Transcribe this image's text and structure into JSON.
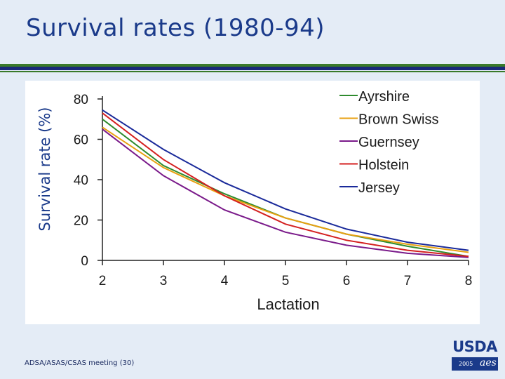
{
  "slide": {
    "title": "Survival rates (1980-94)",
    "footer": "ADSA/ASAS/CSAS meeting (30)",
    "logo_text": "USDA",
    "logo_year": "2005",
    "logo_mark": "aes"
  },
  "colors": {
    "Ayrshire": "#2e8b2e",
    "Brown Swiss": "#e8a010",
    "Guernsey": "#7a1a8a",
    "Holstein": "#d42020",
    "Jersey": "#1a2a9a"
  },
  "chart_data": {
    "type": "line",
    "title": "",
    "xlabel": "Lactation",
    "ylabel": "Survival rate (%)",
    "x": [
      2,
      3,
      4,
      5,
      6,
      7,
      8
    ],
    "x_ticks": [
      "2",
      "3",
      "4",
      "5",
      "6",
      "7",
      "8"
    ],
    "y_ticks": [
      "0",
      "20",
      "40",
      "60",
      "80"
    ],
    "xlim": [
      2,
      8
    ],
    "ylim": [
      0,
      80
    ],
    "grid": false,
    "legend_position": "top-right",
    "series": [
      {
        "name": "Ayrshire",
        "values": [
          70,
          47,
          33,
          21,
          13,
          7,
          2
        ]
      },
      {
        "name": "Brown Swiss",
        "values": [
          66,
          46,
          32,
          21,
          13,
          8,
          4
        ]
      },
      {
        "name": "Guernsey",
        "values": [
          65,
          42,
          25,
          14,
          7.5,
          3.5,
          1.5
        ]
      },
      {
        "name": "Holstein",
        "values": [
          73,
          50,
          32,
          18,
          10,
          5,
          2
        ]
      },
      {
        "name": "Jersey",
        "values": [
          74.5,
          55,
          38.5,
          25.5,
          15.5,
          9,
          5
        ]
      }
    ]
  }
}
